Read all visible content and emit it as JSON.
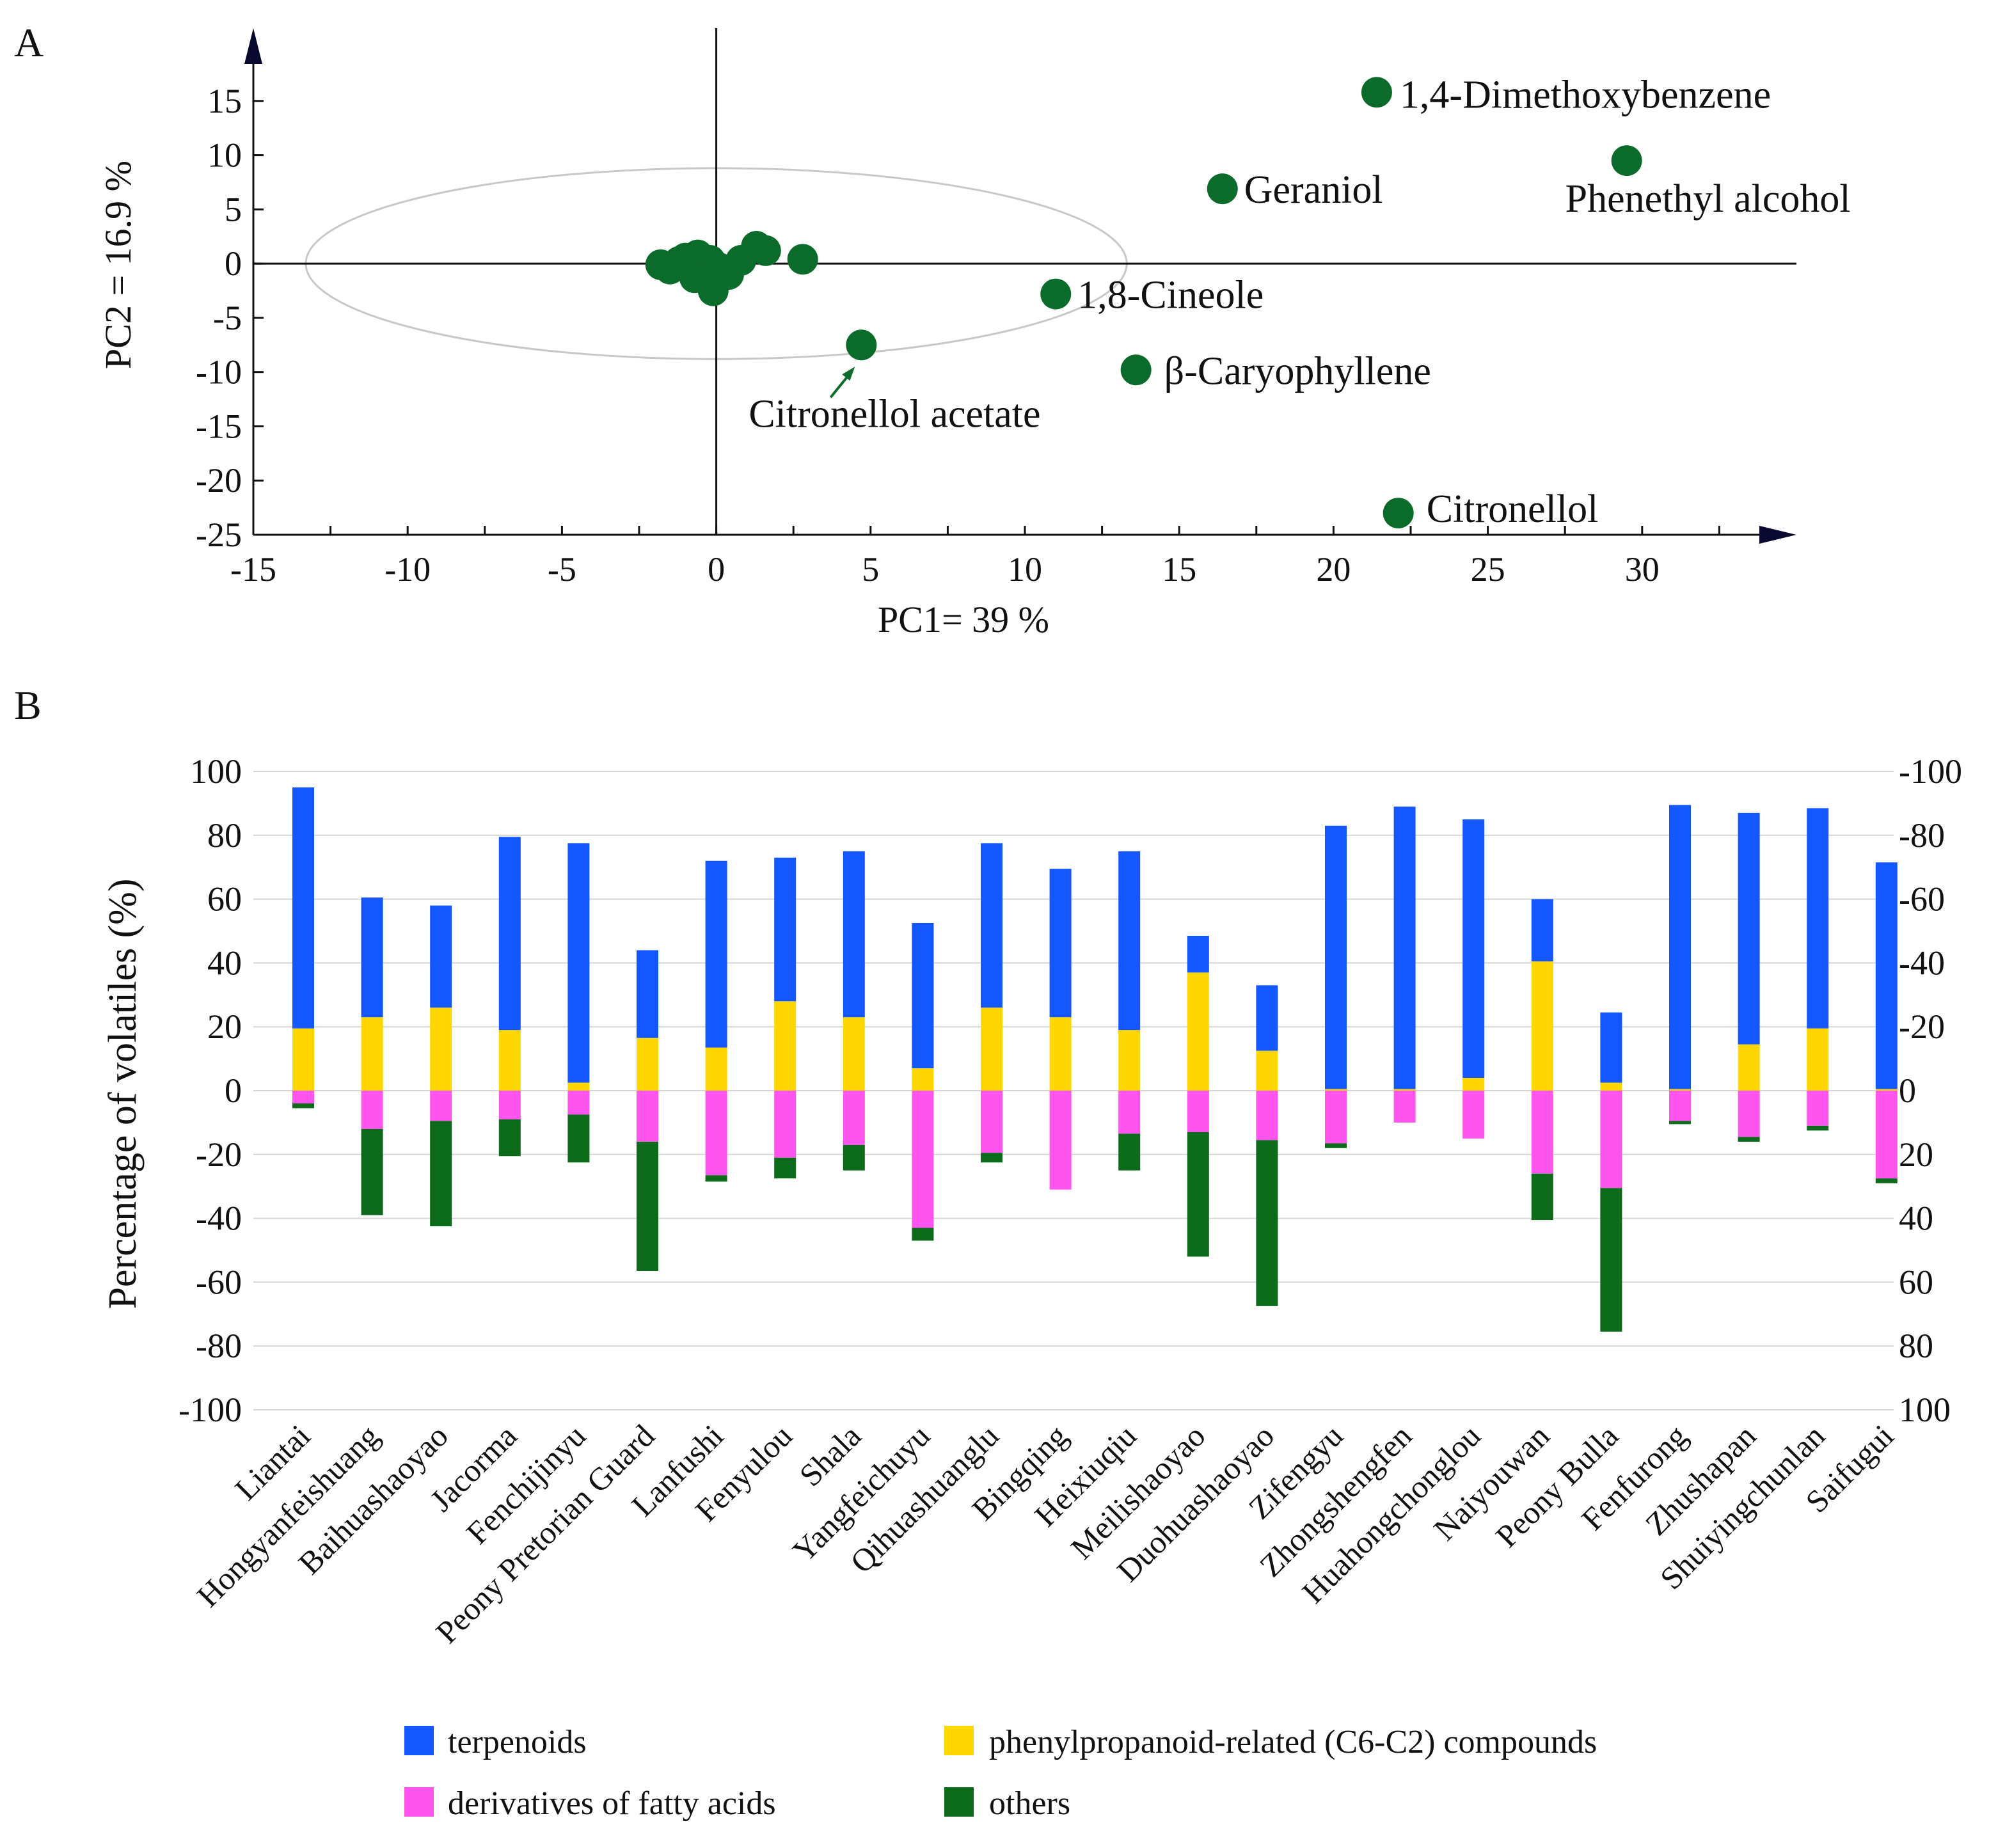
{
  "chart_data": [
    {
      "panel": "A",
      "type": "scatter",
      "xlabel": "PC1= 39 %",
      "ylabel": "PC2 = 16.9 %",
      "xlim": [
        -15,
        35
      ],
      "ylim": [
        -25,
        19
      ],
      "xticks": [
        -15,
        -10,
        -5,
        0,
        5,
        10,
        15,
        20,
        25,
        30
      ],
      "yticks": [
        15,
        10,
        5,
        0,
        -5,
        -10,
        -15,
        -20,
        -25
      ],
      "marker_color": "#0b6b2a",
      "ellipse": {
        "center": [
          0,
          0
        ],
        "radius_x": 13.3,
        "radius_y": 8.8
      },
      "labeled_points": [
        {
          "name": "1,4-Dimethoxybenzene",
          "x": 21.4,
          "y": 15.8
        },
        {
          "name": "Phenethyl alcohol",
          "x": 29.5,
          "y": 9.5
        },
        {
          "name": "Geraniol",
          "x": 16.4,
          "y": 6.9
        },
        {
          "name": "1,8-Cineole",
          "x": 11.0,
          "y": -2.8
        },
        {
          "name": "β-Caryophyllene",
          "x": 13.6,
          "y": -9.8
        },
        {
          "name": "Citronellol acetate",
          "x": 4.7,
          "y": -7.5
        },
        {
          "name": "Citronellol",
          "x": 22.1,
          "y": -23.0
        }
      ],
      "cluster_points": [
        {
          "x": -1.8,
          "y": -0.1
        },
        {
          "x": -1.5,
          "y": -0.5
        },
        {
          "x": -1.2,
          "y": 0.2
        },
        {
          "x": -0.9,
          "y": -0.3
        },
        {
          "x": -0.6,
          "y": 0.8
        },
        {
          "x": -0.4,
          "y": -0.8
        },
        {
          "x": -0.2,
          "y": 0.3
        },
        {
          "x": 0.1,
          "y": -0.4
        },
        {
          "x": 0.4,
          "y": -1.0
        },
        {
          "x": -0.1,
          "y": -2.5
        },
        {
          "x": 0.8,
          "y": 0.3
        },
        {
          "x": 1.3,
          "y": 1.6
        },
        {
          "x": 1.6,
          "y": 1.2
        },
        {
          "x": 2.8,
          "y": 0.4
        },
        {
          "x": -1.0,
          "y": 0.5
        },
        {
          "x": -0.7,
          "y": -1.3
        }
      ]
    },
    {
      "panel": "B",
      "type": "bar",
      "ylabel": "Percentage of volatiles (%)",
      "ylim": [
        -100,
        100
      ],
      "left_ticks": [
        100,
        80,
        60,
        40,
        20,
        0,
        -20,
        -40,
        -60,
        -80,
        -100
      ],
      "right_ticks": [
        -100,
        -80,
        -60,
        -40,
        -20,
        0,
        20,
        40,
        60,
        80,
        100
      ],
      "categories": [
        "Liantai",
        "Hongyanfeishuang",
        "Baihuashaoyao",
        "Jacorma",
        "Fenchijinyu",
        "Peony Pretorian Guard",
        "Lanfushi",
        "Fenyulou",
        "Shala",
        "Yangfeichuyu",
        "Qihuashuanglu",
        "Bingqing",
        "Heixiuqiu",
        "Meilishaoyao",
        "Duohuashaoyao",
        "Zifengyu",
        "Zhongshengfen",
        "Huahongchonglou",
        "Naiyouwan",
        "Peony Bulla",
        "Fenfurong",
        "Zhushapan",
        "Shuiyingchunlan",
        "Saifugui"
      ],
      "series": [
        {
          "name": "phenylpropanoid-related (C6-C2) compounds",
          "color": "#ffd700",
          "direction": "up",
          "values": [
            19.5,
            23,
            26,
            19,
            2.5,
            16.5,
            13.5,
            28,
            23,
            7,
            26,
            23,
            19,
            37,
            12.5,
            0.5,
            0.5,
            4,
            40.5,
            2.5,
            0.5,
            14.5,
            19.5,
            0.5
          ]
        },
        {
          "name": "terpenoids",
          "color": "#1457ff",
          "direction": "up",
          "values": [
            75.5,
            37.5,
            32,
            60.5,
            75,
            27.5,
            58.5,
            45,
            52,
            45.5,
            51.5,
            46.5,
            56,
            11.5,
            20.5,
            82.5,
            88.5,
            81,
            19.5,
            22,
            89,
            72.5,
            69,
            71
          ]
        },
        {
          "name": "derivatives of fatty acids",
          "color": "#ff55ee",
          "direction": "down",
          "values": [
            4,
            12,
            9.5,
            9,
            7.5,
            16,
            26.5,
            21,
            17,
            43,
            19.5,
            31,
            13.5,
            13,
            15.5,
            16.5,
            10,
            15,
            26,
            30.5,
            9.5,
            14.5,
            11,
            27.5
          ]
        },
        {
          "name": "others",
          "color": "#0b6b1a",
          "direction": "down",
          "values": [
            1.5,
            27,
            33,
            11.5,
            15,
            40.5,
            2,
            6.5,
            8,
            4,
            3,
            0,
            11.5,
            39,
            52,
            1.5,
            0,
            0,
            14.5,
            45,
            1,
            1.5,
            1.5,
            1.5
          ]
        }
      ]
    }
  ],
  "panels": {
    "a_label": "A",
    "b_label": "B"
  },
  "legend": {
    "terpenoids": "terpenoids",
    "phenylpropanoid": "phenylpropanoid-related (C6-C2) compounds",
    "fatty_acids": "derivatives of fatty acids",
    "others": "others"
  }
}
